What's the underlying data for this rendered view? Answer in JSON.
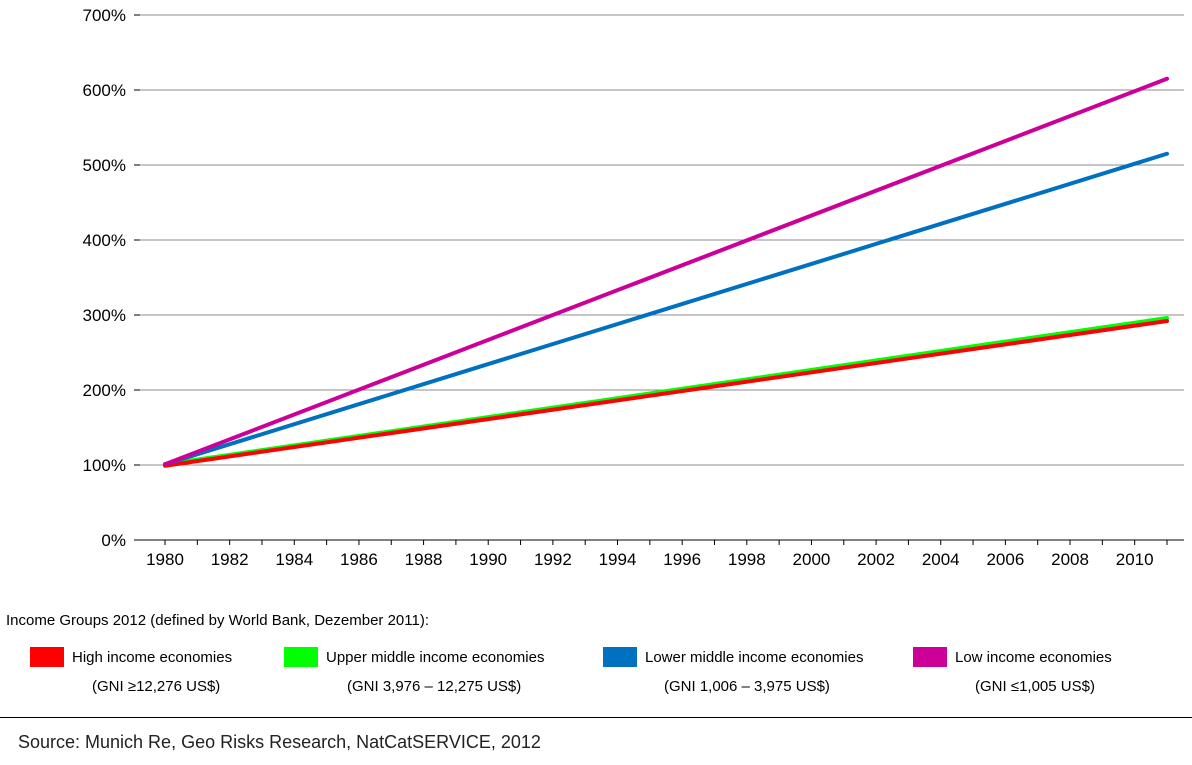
{
  "chart_data": {
    "type": "line",
    "x": [
      1980,
      2011
    ],
    "x_ticks": [
      1980,
      1982,
      1984,
      1986,
      1988,
      1990,
      1992,
      1994,
      1996,
      1998,
      2000,
      2002,
      2004,
      2006,
      2008,
      2010
    ],
    "x_tick_labels": [
      "1980",
      "1982",
      "1984",
      "1986",
      "1988",
      "1990",
      "1992",
      "1994",
      "1996",
      "1998",
      "2000",
      "2002",
      "2004",
      "2006",
      "2008",
      "2010"
    ],
    "y_ticks": [
      0,
      100,
      200,
      300,
      400,
      500,
      600,
      700
    ],
    "y_tick_labels": [
      "0%",
      "100%",
      "200%",
      "300%",
      "400%",
      "500%",
      "600%",
      "700%"
    ],
    "ylim": [
      0,
      700
    ],
    "xlim": [
      1980,
      2011
    ],
    "grid": "horizontal",
    "legend_placement": "bottom",
    "series": [
      {
        "name": "Upper middle income economies",
        "color": "#00ff00",
        "values": [
          101,
          296
        ]
      },
      {
        "name": "High income economies",
        "color": "#ff0000",
        "values": [
          99,
          292
        ]
      },
      {
        "name": "Lower middle income economies",
        "color": "#0070c0",
        "values": [
          101,
          515
        ]
      },
      {
        "name": "Low income economies",
        "color": "#cc0099",
        "values": [
          101,
          615
        ]
      }
    ]
  },
  "legend": {
    "title": "Income Groups 2012 (defined by World Bank, Dezember 2011):",
    "items": [
      {
        "label": "High income economies",
        "range": "(GNI ≥12,276 US$)",
        "color": "#ff0000"
      },
      {
        "label": "Upper middle income economies",
        "range": "(GNI 3,976 – 12,275 US$)",
        "color": "#00ff00"
      },
      {
        "label": "Lower middle income economies",
        "range": "(GNI 1,006 – 3,975 US$)",
        "color": "#0070c0"
      },
      {
        "label": "Low  income economies",
        "range": "(GNI  ≤1,005 US$)",
        "color": "#cc0099"
      }
    ]
  },
  "source": "Source: Munich Re, Geo Risks Research, NatCatSERVICE, 2012"
}
